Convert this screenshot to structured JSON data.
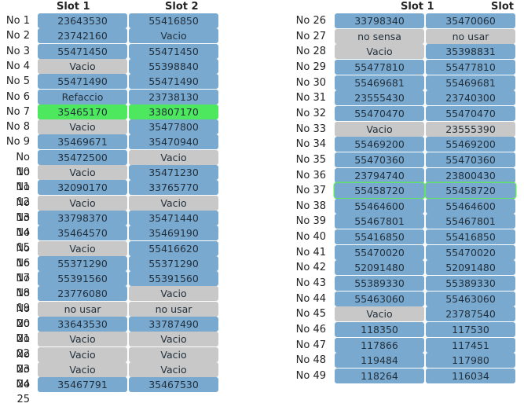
{
  "headers": {
    "slot1": "Slot 1",
    "slot2": "Slot 2"
  },
  "status_colors": {
    "blue": "#7aa9d0",
    "gray": "#c8c8c8",
    "green": "#4de85d",
    "outline": "#63e06a"
  },
  "left_rows": [
    {
      "label": "No 1",
      "slot1": "23643530",
      "slot2": "55416850",
      "s1": "blue",
      "s2": "blue"
    },
    {
      "label": "No 2",
      "slot1": "23742160",
      "slot2": "Vacio",
      "s1": "blue",
      "s2": "blue"
    },
    {
      "label": "No 3",
      "slot1": "55471450",
      "slot2": "55471450",
      "s1": "blue",
      "s2": "blue"
    },
    {
      "label": "No 4",
      "slot1": "Vacio",
      "slot2": "55398840",
      "s1": "gray",
      "s2": "blue"
    },
    {
      "label": "No 5",
      "slot1": "55471490",
      "slot2": "55471490",
      "s1": "blue",
      "s2": "blue"
    },
    {
      "label": "No 6",
      "slot1": "Refaccio",
      "slot2": "23738130",
      "s1": "blue",
      "s2": "blue"
    },
    {
      "label": "No 7",
      "slot1": "35465170",
      "slot2": "33807170",
      "s1": "green",
      "s2": "green"
    },
    {
      "label": "No 8",
      "slot1": "Vacio",
      "slot2": "35477800",
      "s1": "gray",
      "s2": "blue"
    },
    {
      "label": "No 9",
      "slot1": "35469671",
      "slot2": "35470940",
      "s1": "blue",
      "s2": "blue"
    },
    {
      "label": "No 10",
      "slot1": "35472500",
      "slot2": "Vacio",
      "s1": "blue",
      "s2": "gray"
    },
    {
      "label": "No 11",
      "slot1": "Vacio",
      "slot2": "35471230",
      "s1": "gray",
      "s2": "blue"
    },
    {
      "label": "No 12",
      "slot1": "32090170",
      "slot2": "33765770",
      "s1": "blue",
      "s2": "blue"
    },
    {
      "label": "No 13",
      "slot1": "Vacio",
      "slot2": "Vacio",
      "s1": "gray",
      "s2": "gray"
    },
    {
      "label": "No 14",
      "slot1": "33798370",
      "slot2": "35471440",
      "s1": "blue",
      "s2": "blue"
    },
    {
      "label": "No 15",
      "slot1": "35464570",
      "slot2": "35469190",
      "s1": "blue",
      "s2": "blue"
    },
    {
      "label": "No 16",
      "slot1": "Vacio",
      "slot2": "55416620",
      "s1": "gray",
      "s2": "blue"
    },
    {
      "label": "No 17",
      "slot1": "55371290",
      "slot2": "55371290",
      "s1": "blue",
      "s2": "blue"
    },
    {
      "label": "No 18",
      "slot1": "55391560",
      "slot2": "55391560",
      "s1": "blue",
      "s2": "blue"
    },
    {
      "label": "No 19",
      "slot1": "23776080",
      "slot2": "Vacio",
      "s1": "blue",
      "s2": "gray"
    },
    {
      "label": "No 20",
      "slot1": "no usar",
      "slot2": "no usar",
      "s1": "gray",
      "s2": "gray"
    },
    {
      "label": "No 21",
      "slot1": "33643530",
      "slot2": "33787490",
      "s1": "blue",
      "s2": "blue"
    },
    {
      "label": "No 22",
      "slot1": "Vacio",
      "slot2": "Vacio",
      "s1": "gray",
      "s2": "gray"
    },
    {
      "label": "No 23",
      "slot1": "Vacio",
      "slot2": "Vacio",
      "s1": "gray",
      "s2": "gray"
    },
    {
      "label": "No 24",
      "slot1": "Vacio",
      "slot2": "Vacio",
      "s1": "gray",
      "s2": "gray"
    },
    {
      "label": "No 25",
      "slot1": "35467791",
      "slot2": "35467530",
      "s1": "blue",
      "s2": "blue"
    }
  ],
  "right_rows": [
    {
      "label": "No 26",
      "slot1": "33798340",
      "slot2": "35470060",
      "s1": "blue",
      "s2": "blue"
    },
    {
      "label": "No 27",
      "slot1": "no sensa",
      "slot2": "no usar",
      "s1": "gray",
      "s2": "gray"
    },
    {
      "label": "No 28",
      "slot1": "Vacio",
      "slot2": "35398831",
      "s1": "gray",
      "s2": "blue"
    },
    {
      "label": "No 29",
      "slot1": "55477810",
      "slot2": "55477810",
      "s1": "blue",
      "s2": "blue"
    },
    {
      "label": "No 30",
      "slot1": "55469681",
      "slot2": "55469681",
      "s1": "blue",
      "s2": "blue"
    },
    {
      "label": "No 31",
      "slot1": "23555430",
      "slot2": "23740300",
      "s1": "blue",
      "s2": "blue"
    },
    {
      "label": "No 32",
      "slot1": "55470470",
      "slot2": "55470470",
      "s1": "blue",
      "s2": "blue"
    },
    {
      "label": "No 33",
      "slot1": "Vacio",
      "slot2": "23555390",
      "s1": "gray",
      "s2": "gray"
    },
    {
      "label": "No 34",
      "slot1": "55469200",
      "slot2": "55469200",
      "s1": "blue",
      "s2": "blue"
    },
    {
      "label": "No 35",
      "slot1": "55470360",
      "slot2": "55470360",
      "s1": "blue",
      "s2": "blue"
    },
    {
      "label": "No 36",
      "slot1": "23794740",
      "slot2": "23800430",
      "s1": "blue",
      "s2": "blue"
    },
    {
      "label": "No 37",
      "slot1": "55458720",
      "slot2": "55458720",
      "s1": "outline",
      "s2": "outline"
    },
    {
      "label": "No 38",
      "slot1": "55464600",
      "slot2": "55464600",
      "s1": "blue",
      "s2": "blue"
    },
    {
      "label": "No 39",
      "slot1": "55467801",
      "slot2": "55467801",
      "s1": "blue",
      "s2": "blue"
    },
    {
      "label": "No 40",
      "slot1": "55416850",
      "slot2": "55416850",
      "s1": "blue",
      "s2": "blue"
    },
    {
      "label": "No 41",
      "slot1": "55470020",
      "slot2": "55470020",
      "s1": "blue",
      "s2": "blue"
    },
    {
      "label": "No 42",
      "slot1": "52091480",
      "slot2": "52091480",
      "s1": "blue",
      "s2": "blue"
    },
    {
      "label": "No 43",
      "slot1": "55389330",
      "slot2": "55389330",
      "s1": "blue",
      "s2": "blue"
    },
    {
      "label": "No 44",
      "slot1": "55463060",
      "slot2": "55463060",
      "s1": "blue",
      "s2": "blue"
    },
    {
      "label": "No 45",
      "slot1": "Vacio",
      "slot2": "23787540",
      "s1": "gray",
      "s2": "blue"
    },
    {
      "label": "No 46",
      "slot1": "118350",
      "slot2": "117530",
      "s1": "blue",
      "s2": "blue"
    },
    {
      "label": "No 47",
      "slot1": "117866",
      "slot2": "117451",
      "s1": "blue",
      "s2": "blue"
    },
    {
      "label": "No 48",
      "slot1": "119484",
      "slot2": "117980",
      "s1": "blue",
      "s2": "blue"
    },
    {
      "label": "No 49",
      "slot1": "118264",
      "slot2": "116034",
      "s1": "blue",
      "s2": "blue"
    }
  ]
}
